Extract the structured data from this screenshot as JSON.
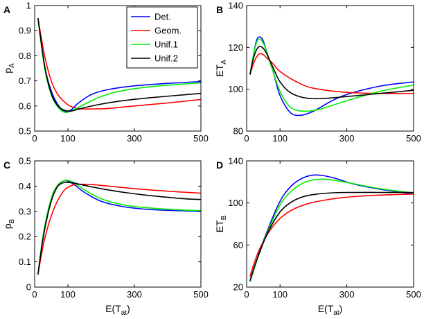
{
  "chart_data": [
    {
      "type": "line",
      "panel_label": "A",
      "ylabel_main": "p",
      "ylabel_sub": "A",
      "xlabel_main": "",
      "xlabel_sub": "",
      "xlim": [
        0,
        500
      ],
      "ylim": [
        0.5,
        1.0
      ],
      "xticks": [
        0,
        100,
        300,
        500
      ],
      "yticks": [
        0.5,
        0.6,
        0.7,
        0.8,
        0.9,
        1.0
      ],
      "ytick_labels": [
        "0.5",
        "0.6",
        "0.7",
        "0.8",
        "0.9",
        "1"
      ],
      "legend": {
        "location": "top-right",
        "entries": [
          "Det.",
          "Geom.",
          "Unif.1",
          "Unif.2"
        ]
      },
      "series": [
        {
          "name": "Det.",
          "color": "#0000ff",
          "x": [
            10,
            30,
            50,
            70,
            90,
            110,
            130,
            170,
            220,
            300,
            400,
            500
          ],
          "y": [
            0.95,
            0.76,
            0.66,
            0.605,
            0.578,
            0.585,
            0.61,
            0.645,
            0.665,
            0.68,
            0.69,
            0.697
          ]
        },
        {
          "name": "Geom.",
          "color": "#ff0000",
          "x": [
            10,
            30,
            50,
            70,
            100,
            130,
            170,
            220,
            300,
            400,
            500
          ],
          "y": [
            0.95,
            0.8,
            0.7,
            0.645,
            0.605,
            0.59,
            0.588,
            0.59,
            0.6,
            0.612,
            0.626
          ]
        },
        {
          "name": "Unif.1",
          "color": "#00ee00",
          "x": [
            10,
            30,
            50,
            70,
            90,
            110,
            140,
            190,
            250,
            350,
            500
          ],
          "y": [
            0.95,
            0.75,
            0.645,
            0.595,
            0.575,
            0.58,
            0.6,
            0.632,
            0.657,
            0.677,
            0.692
          ]
        },
        {
          "name": "Unif.2",
          "color": "#000000",
          "x": [
            10,
            30,
            50,
            70,
            90,
            110,
            140,
            190,
            260,
            350,
            500
          ],
          "y": [
            0.95,
            0.76,
            0.65,
            0.6,
            0.583,
            0.58,
            0.59,
            0.605,
            0.62,
            0.633,
            0.65
          ]
        }
      ]
    },
    {
      "type": "line",
      "panel_label": "B",
      "ylabel_main": "ET",
      "ylabel_sub": "A",
      "xlabel_main": "",
      "xlabel_sub": "",
      "xlim": [
        0,
        500
      ],
      "ylim": [
        80,
        140
      ],
      "xticks": [
        0,
        100,
        300,
        500
      ],
      "yticks": [
        80,
        100,
        120,
        140
      ],
      "ytick_labels": [
        "80",
        "100",
        "120",
        "140"
      ],
      "series": [
        {
          "name": "Det.",
          "color": "#0000ff",
          "x": [
            10,
            20,
            30,
            40,
            50,
            60,
            80,
            100,
            130,
            160,
            200,
            250,
            300,
            400,
            500
          ],
          "y": [
            107,
            116,
            123.5,
            125,
            123,
            118,
            108,
            97,
            89,
            87.5,
            89.5,
            94,
            97.5,
            101.5,
            103.5
          ]
        },
        {
          "name": "Geom.",
          "color": "#ff0000",
          "x": [
            10,
            20,
            30,
            40,
            50,
            60,
            80,
            100,
            150,
            200,
            300,
            400,
            500
          ],
          "y": [
            107,
            112,
            115.5,
            117,
            116.5,
            115,
            112,
            108.5,
            103.5,
            100.5,
            98.5,
            98,
            98
          ]
        },
        {
          "name": "Unif.1",
          "color": "#00ee00",
          "x": [
            10,
            20,
            30,
            40,
            50,
            60,
            80,
            100,
            130,
            170,
            220,
            300,
            400,
            500
          ],
          "y": [
            107,
            116,
            122.5,
            124,
            122,
            118,
            108,
            99,
            91.5,
            89.5,
            90.5,
            94.5,
            99,
            102
          ]
        },
        {
          "name": "Unif.2",
          "color": "#000000",
          "x": [
            10,
            20,
            30,
            40,
            50,
            60,
            80,
            100,
            130,
            170,
            220,
            300,
            400,
            500
          ],
          "y": [
            107,
            114.5,
            119,
            120.5,
            119.5,
            117,
            110,
            103.5,
            98.5,
            96,
            95.5,
            96.5,
            98,
            99.5
          ]
        }
      ]
    },
    {
      "type": "line",
      "panel_label": "C",
      "ylabel_main": "p",
      "ylabel_sub": "B",
      "xlabel_main": "E(T",
      "xlabel_sub": "at",
      "xlabel_close": ")",
      "xlim": [
        0,
        500
      ],
      "ylim": [
        0,
        0.5
      ],
      "xticks": [
        0,
        100,
        300,
        500
      ],
      "yticks": [
        0,
        0.1,
        0.2,
        0.3,
        0.4,
        0.5
      ],
      "ytick_labels": [
        "0",
        "0.1",
        "0.2",
        "0.3",
        "0.4",
        "0.5"
      ],
      "series": [
        {
          "name": "Det.",
          "color": "#0000ff",
          "x": [
            10,
            25,
            40,
            55,
            70,
            85,
            100,
            120,
            150,
            200,
            270,
            350,
            450,
            500
          ],
          "y": [
            0.05,
            0.2,
            0.3,
            0.37,
            0.405,
            0.42,
            0.42,
            0.405,
            0.375,
            0.34,
            0.318,
            0.307,
            0.302,
            0.3
          ]
        },
        {
          "name": "Geom.",
          "color": "#ff0000",
          "x": [
            10,
            25,
            40,
            55,
            70,
            90,
            110,
            130,
            160,
            200,
            300,
            400,
            500
          ],
          "y": [
            0.05,
            0.16,
            0.24,
            0.3,
            0.345,
            0.385,
            0.402,
            0.407,
            0.407,
            0.403,
            0.39,
            0.38,
            0.372
          ]
        },
        {
          "name": "Unif.1",
          "color": "#00ee00",
          "x": [
            10,
            25,
            40,
            55,
            70,
            85,
            100,
            120,
            150,
            200,
            270,
            350,
            450,
            500
          ],
          "y": [
            0.05,
            0.2,
            0.3,
            0.37,
            0.405,
            0.42,
            0.423,
            0.412,
            0.385,
            0.35,
            0.325,
            0.313,
            0.305,
            0.303
          ]
        },
        {
          "name": "Unif.2",
          "color": "#000000",
          "x": [
            10,
            25,
            40,
            55,
            70,
            85,
            100,
            120,
            150,
            200,
            270,
            350,
            450,
            500
          ],
          "y": [
            0.05,
            0.19,
            0.29,
            0.36,
            0.4,
            0.413,
            0.415,
            0.412,
            0.403,
            0.39,
            0.375,
            0.362,
            0.35,
            0.347
          ]
        }
      ]
    },
    {
      "type": "line",
      "panel_label": "D",
      "ylabel_main": "ET",
      "ylabel_sub": "B",
      "xlabel_main": "E(T",
      "xlabel_sub": "at",
      "xlabel_close": ")",
      "xlim": [
        0,
        500
      ],
      "ylim": [
        20,
        140
      ],
      "xticks": [
        0,
        100,
        300,
        500
      ],
      "yticks": [
        20,
        60,
        100,
        140
      ],
      "ytick_labels": [
        "20",
        "60",
        "100",
        "140"
      ],
      "series": [
        {
          "name": "Det.",
          "color": "#0000ff",
          "x": [
            10,
            25,
            40,
            55,
            70,
            90,
            110,
            140,
            170,
            200,
            230,
            270,
            320,
            400,
            500
          ],
          "y": [
            25,
            40,
            55,
            68,
            80,
            95,
            107,
            118,
            124,
            126.5,
            126,
            123,
            118,
            113,
            108.5
          ]
        },
        {
          "name": "Geom.",
          "color": "#ff0000",
          "x": [
            10,
            25,
            40,
            55,
            70,
            90,
            110,
            140,
            180,
            230,
            300,
            400,
            500
          ],
          "y": [
            30,
            45,
            57,
            66,
            74,
            82,
            88,
            94,
            99,
            102.5,
            105.5,
            107.5,
            108.5
          ]
        },
        {
          "name": "Unif.1",
          "color": "#00ee00",
          "x": [
            10,
            25,
            40,
            55,
            70,
            90,
            110,
            140,
            170,
            200,
            240,
            300,
            400,
            500
          ],
          "y": [
            25,
            40,
            54,
            67,
            78,
            92,
            103,
            113,
            119,
            122,
            122.5,
            119.5,
            113.5,
            109.5
          ]
        },
        {
          "name": "Unif.2",
          "color": "#000000",
          "x": [
            10,
            25,
            40,
            55,
            70,
            90,
            110,
            140,
            170,
            200,
            250,
            300,
            400,
            500
          ],
          "y": [
            26,
            41,
            54,
            66,
            76,
            87,
            95,
            102,
            106,
            108,
            109.5,
            110,
            110,
            110
          ]
        }
      ]
    }
  ]
}
